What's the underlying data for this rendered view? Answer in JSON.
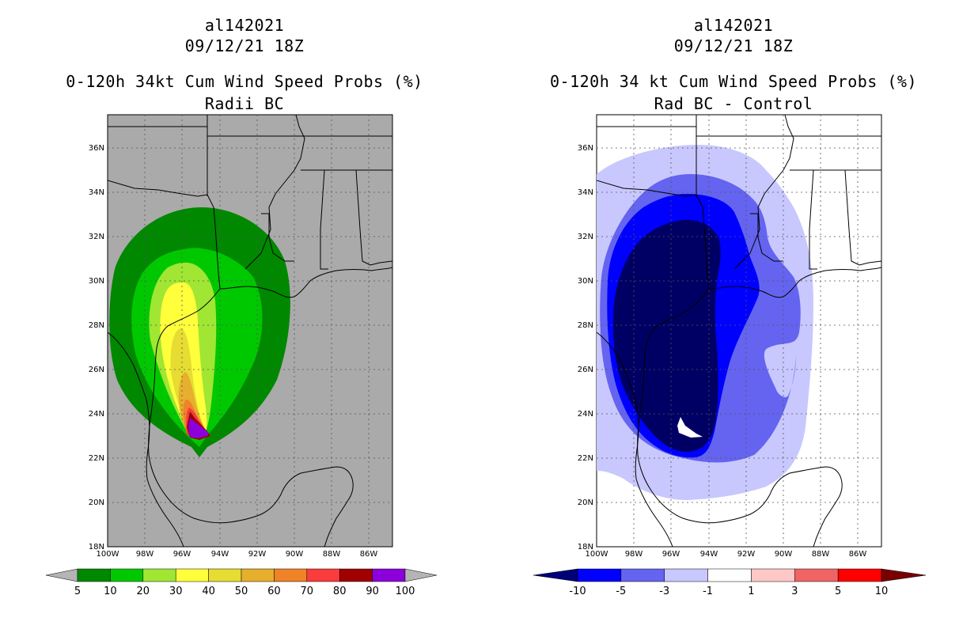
{
  "panels": [
    {
      "storm_id": "al142021",
      "datetime": "09/12/21 18Z",
      "title": "0-120h 34kt Cum Wind Speed Probs (%)",
      "subtitle": "Radii BC",
      "colorbar": {
        "labels": [
          "5",
          "10",
          "20",
          "30",
          "40",
          "50",
          "60",
          "70",
          "80",
          "90",
          "100"
        ],
        "colors": [
          "#008800",
          "#00c800",
          "#a0e632",
          "#ffff3c",
          "#e6dc32",
          "#e6af2d",
          "#f08228",
          "#fa3c3c",
          "#a00000",
          "#8c00dc"
        ],
        "under_color": "#b4b4b4",
        "over_color": "#b4b4b4"
      }
    },
    {
      "storm_id": "al142021",
      "datetime": "09/12/21 18Z",
      "title": "0-120h 34 kt Cum Wind Speed Probs (%)",
      "subtitle": "Rad BC - Control",
      "colorbar": {
        "labels": [
          "-10",
          "-5",
          "-3",
          "-1",
          "1",
          "3",
          "5",
          "10"
        ],
        "colors": [
          "#0000ff",
          "#6464f0",
          "#c8c8ff",
          "#ffffff",
          "#ffc8c8",
          "#f06464",
          "#ff0000"
        ],
        "under_color": "#000078",
        "over_color": "#780000"
      }
    }
  ],
  "axes": {
    "lat_labels": [
      "18N",
      "20N",
      "22N",
      "24N",
      "26N",
      "28N",
      "30N",
      "32N",
      "34N",
      "36N"
    ],
    "lon_labels": [
      "100W",
      "98W",
      "96W",
      "94W",
      "92W",
      "90W",
      "88W",
      "86W"
    ]
  },
  "colors": {
    "map_bg_left": "#aaaaaa",
    "map_bg_right": "#ffffff",
    "diff_dark": "#000064",
    "diff_blue": "#0000ff",
    "diff_mid": "#6464f0",
    "diff_light": "#c8c8ff"
  }
}
